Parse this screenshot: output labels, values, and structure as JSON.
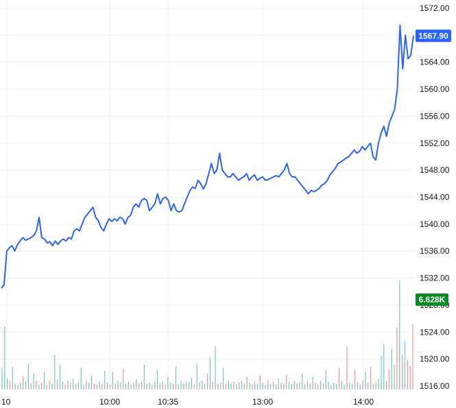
{
  "chart_data": {
    "type": "line",
    "title": "",
    "xlabel": "",
    "ylabel": "",
    "ylim": [
      1514,
      1573
    ],
    "y_ticks": [
      "1572.00",
      "1568.00",
      "1564.00",
      "1560.00",
      "1556.00",
      "1552.00",
      "1548.00",
      "1544.00",
      "1540.00",
      "1536.00",
      "1532.00",
      "1528.00",
      "1524.00",
      "1520.00",
      "1516.00"
    ],
    "x_ticks": [
      "10",
      "10:00",
      "10:35",
      "13:00",
      "14:00"
    ],
    "grid": true,
    "last_price_label": "1567.90",
    "last_volume_label": "6.628K",
    "colors": {
      "line": "#2962ff",
      "price_badge": "#2962ff",
      "volume_badge": "#0a8a22",
      "volume_up": "#26a69a",
      "volume_down": "#ef5350",
      "grid": "#eef0f3"
    },
    "price_series": [
      1530.5,
      1531,
      1536,
      1536.5,
      1536.8,
      1536,
      1537,
      1537.5,
      1538,
      1537.6,
      1537.8,
      1538,
      1538.3,
      1539,
      1541,
      1538,
      1537.8,
      1537.2,
      1537.4,
      1536.8,
      1537.5,
      1537,
      1537.5,
      1537.8,
      1537.5,
      1538,
      1537.8,
      1539,
      1539.3,
      1539,
      1540,
      1541,
      1541.5,
      1542,
      1542.5,
      1541,
      1540.5,
      1539.5,
      1539,
      1540,
      1540.8,
      1540.4,
      1540.8,
      1540.5,
      1541,
      1540.8,
      1540,
      1541,
      1541.3,
      1542.5,
      1543,
      1542.5,
      1543.5,
      1543.8,
      1543.5,
      1542,
      1542.5,
      1543,
      1544.5,
      1543,
      1543.8,
      1544,
      1543.5,
      1542,
      1543,
      1542,
      1541.8,
      1542,
      1543,
      1544,
      1545,
      1545.5,
      1545.3,
      1546.5,
      1546,
      1545.2,
      1546,
      1547.5,
      1549,
      1547.5,
      1548,
      1550.5,
      1548,
      1547.5,
      1547,
      1547,
      1547.5,
      1547,
      1546.5,
      1546.8,
      1547,
      1547.5,
      1546.5,
      1547,
      1547.3,
      1546.5,
      1546.8,
      1547,
      1546.5,
      1546.6,
      1546.8,
      1547,
      1547.2,
      1547,
      1547.5,
      1548,
      1549,
      1547.5,
      1547,
      1547,
      1546.5,
      1546,
      1545.5,
      1545,
      1544.5,
      1545,
      1544.8,
      1545,
      1545.3,
      1545.8,
      1546,
      1546.5,
      1547.3,
      1547.8,
      1548.3,
      1549,
      1549.2,
      1549.5,
      1549.8,
      1550,
      1550.5,
      1551,
      1550.5,
      1550.8,
      1551.5,
      1551,
      1551.5,
      1552,
      1550,
      1549.5,
      1552,
      1553.5,
      1554.5,
      1553,
      1555,
      1556,
      1557,
      1560,
      1569.5,
      1563,
      1568,
      1564.5,
      1565,
      1567.9
    ],
    "volume_series": [
      2.2,
      6.4,
      1.1,
      0.9,
      2.3,
      0.6,
      0.5,
      0.7,
      1.3,
      0.8,
      2.6,
      0.6,
      1.6,
      0.9,
      0.5,
      0.7,
      1.8,
      0.5,
      0.9,
      0.6,
      3.5,
      1.0,
      2.5,
      0.8,
      0.5,
      0.9,
      0.7,
      1.1,
      0.6,
      0.8,
      2.2,
      0.5,
      0.9,
      0.7,
      1.4,
      0.6,
      0.5,
      0.8,
      0.6,
      1.9,
      0.7,
      0.5,
      1.8,
      0.6,
      0.9,
      0.7,
      2.1,
      0.6,
      0.8,
      0.5,
      0.7,
      1.0,
      0.6,
      0.8,
      2.5,
      0.6,
      0.7,
      0.5,
      0.9,
      2.0,
      0.6,
      0.8,
      0.5,
      1.3,
      0.7,
      0.6,
      2.3,
      0.5,
      0.9,
      0.6,
      0.8,
      0.7,
      1.2,
      0.5,
      2.6,
      0.7,
      0.9,
      0.6,
      1.6,
      3.3,
      0.8,
      4.4,
      0.6,
      0.7,
      2.2,
      0.5,
      0.9,
      0.6,
      0.8,
      0.5,
      0.7,
      0.9,
      0.6,
      1.3,
      0.7,
      0.5,
      0.8,
      0.6,
      1.4,
      0.7,
      0.5,
      0.9,
      0.6,
      0.8,
      0.5,
      1.1,
      0.7,
      0.6,
      1.5,
      0.8,
      0.5,
      0.9,
      0.6,
      0.7,
      1.6,
      0.5,
      0.8,
      0.6,
      1.3,
      0.7,
      0.5,
      0.9,
      0.6,
      2.0,
      0.8,
      0.5,
      0.7,
      0.6,
      2.2,
      0.9,
      0.5,
      4.3,
      0.7,
      0.6,
      2.0,
      0.8,
      0.5,
      0.9,
      1.8,
      0.7,
      2.3,
      0.6,
      0.8,
      1.1,
      3.4,
      4.6,
      0.9,
      2.1,
      4.1,
      2.5,
      6.3,
      11.0,
      3.5,
      4.9,
      3.0,
      2.4,
      6.6
    ],
    "volume_up_flags": [
      1,
      1,
      1,
      0,
      1,
      0,
      1,
      1,
      0,
      1,
      1,
      0,
      1,
      0,
      1,
      0,
      1,
      1,
      0,
      1,
      1,
      0,
      1,
      1,
      0,
      1,
      0,
      1,
      1,
      0,
      1,
      1,
      0,
      1,
      1,
      0,
      0,
      1,
      0,
      1,
      1,
      0,
      1,
      0,
      1,
      1,
      0,
      1,
      1,
      0,
      1,
      1,
      0,
      1,
      1,
      0,
      1,
      0,
      1,
      1,
      0,
      1,
      0,
      1,
      1,
      0,
      1,
      0,
      1,
      1,
      0,
      1,
      1,
      0,
      1,
      0,
      1,
      1,
      0,
      1,
      0,
      1,
      1,
      0,
      1,
      0,
      1,
      1,
      0,
      1,
      0,
      1,
      1,
      0,
      1,
      1,
      0,
      1,
      0,
      1,
      1,
      0,
      1,
      0,
      1,
      1,
      0,
      1,
      0,
      1,
      1,
      0,
      1,
      0,
      1,
      1,
      0,
      1,
      1,
      0,
      1,
      1,
      0,
      1,
      1,
      0,
      1,
      1,
      0,
      1,
      1,
      0,
      1,
      1,
      0,
      1,
      1,
      0,
      1,
      1,
      0,
      1,
      0,
      1,
      1,
      1,
      1,
      0,
      1,
      1,
      0,
      1,
      0,
      1
    ]
  }
}
